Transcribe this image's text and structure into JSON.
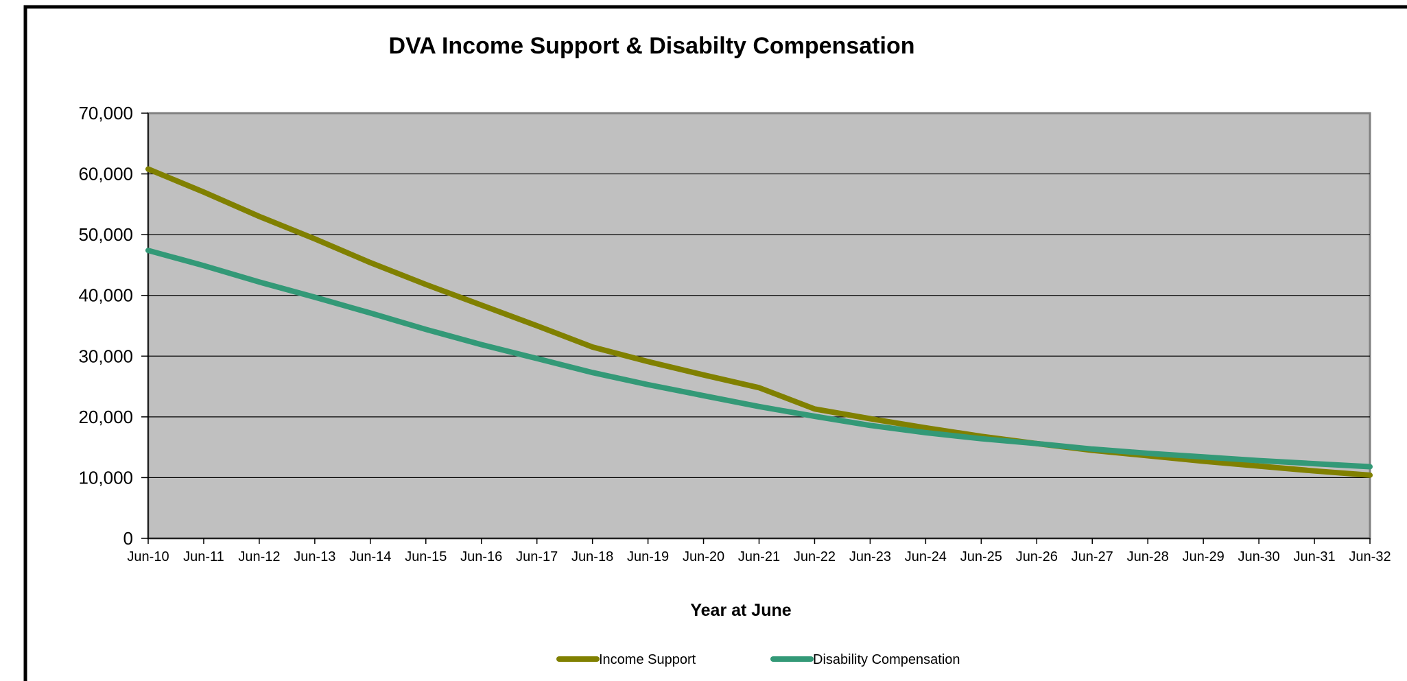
{
  "chart_data": {
    "type": "line",
    "title": "DVA Income Support & Disabilty Compensation",
    "xlabel": "Year at June",
    "ylabel": "",
    "categories": [
      "Jun-10",
      "Jun-11",
      "Jun-12",
      "Jun-13",
      "Jun-14",
      "Jun-15",
      "Jun-16",
      "Jun-17",
      "Jun-18",
      "Jun-19",
      "Jun-20",
      "Jun-21",
      "Jun-22",
      "Jun-23",
      "Jun-24",
      "Jun-25",
      "Jun-26",
      "Jun-27",
      "Jun-28",
      "Jun-29",
      "Jun-30",
      "Jun-31",
      "Jun-32"
    ],
    "ylim": [
      0,
      70000
    ],
    "yticks": [
      0,
      10000,
      20000,
      30000,
      40000,
      50000,
      60000,
      70000
    ],
    "ytick_labels": [
      "0",
      "10,000",
      "20,000",
      "30,000",
      "40,000",
      "50,000",
      "60,000",
      "70,000"
    ],
    "grid": true,
    "legend_position": "bottom-center",
    "series": [
      {
        "name": "Income Support",
        "color": "#808000",
        "values": [
          60800,
          57000,
          53000,
          49300,
          45400,
          41800,
          38400,
          35000,
          31500,
          29100,
          26900,
          24800,
          21300,
          19700,
          18200,
          16800,
          15600,
          14500,
          13600,
          12700,
          11900,
          11100,
          10400
        ]
      },
      {
        "name": "Disability Compensation",
        "color": "#339977",
        "values": [
          47400,
          44900,
          42200,
          39700,
          37100,
          34400,
          31900,
          29600,
          27300,
          25300,
          23500,
          21700,
          20100,
          18600,
          17400,
          16400,
          15600,
          14700,
          14000,
          13400,
          12800,
          12300,
          11800
        ]
      }
    ],
    "colors": {
      "plot_background": "#c0c0c0",
      "frame": "#000000",
      "gridline": "#000000"
    }
  }
}
